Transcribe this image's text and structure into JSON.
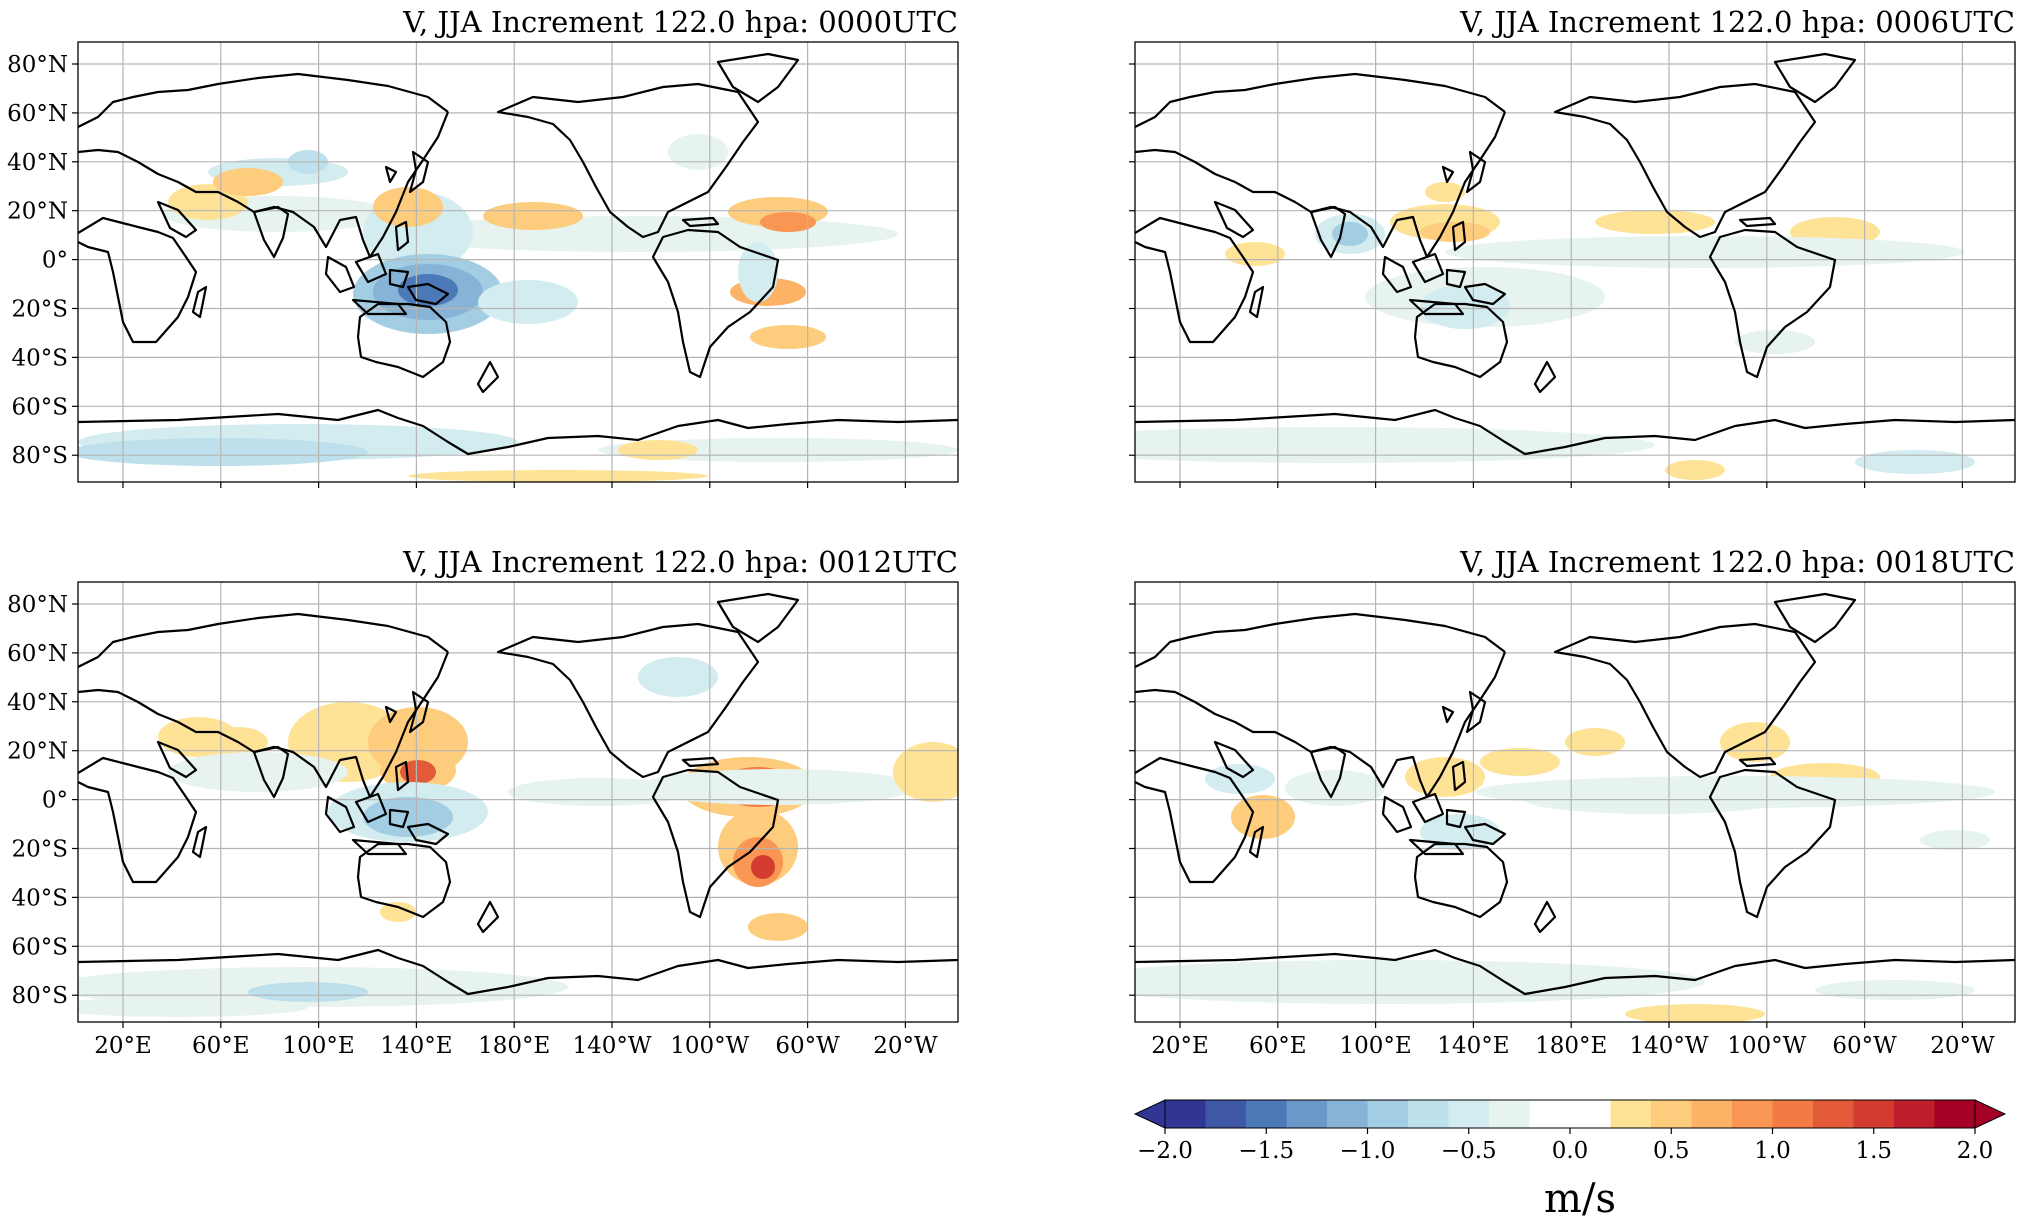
{
  "panels": [
    {
      "title": "V, JJA Increment 122.0 hpa: 0000UTC"
    },
    {
      "title": "V, JJA Increment 122.0 hpa: 0006UTC"
    },
    {
      "title": "V, JJA Increment 122.0 hpa: 0012UTC"
    },
    {
      "title": "V, JJA Increment 122.0 hpa: 0018UTC"
    }
  ],
  "lat_ticks": [
    "80°N",
    "60°N",
    "40°N",
    "20°N",
    "0°",
    "20°S",
    "40°S",
    "60°S",
    "80°S"
  ],
  "lon_ticks": [
    "20°E",
    "60°E",
    "100°E",
    "140°E",
    "180°E",
    "140°W",
    "100°W",
    "60°W",
    "20°W"
  ],
  "colorbar": {
    "unit": "m/s",
    "range": [
      -2.0,
      2.0
    ],
    "ticks": [
      "−2.0",
      "−1.5",
      "−1.0",
      "−0.5",
      "0.0",
      "0.5",
      "1.0",
      "1.5",
      "2.0"
    ],
    "colors": [
      "#313695",
      "#3f58a6",
      "#4c79b7",
      "#6b98c8",
      "#86b3d6",
      "#a3cde3",
      "#bde0ec",
      "#d3ecef",
      "#e6f3ee",
      "#ffffff",
      "#ffffff",
      "#fee396",
      "#fdcc7c",
      "#fdb366",
      "#f99653",
      "#f27a45",
      "#e35a38",
      "#d33b2e",
      "#bd1e2a",
      "#a50026"
    ]
  }
}
